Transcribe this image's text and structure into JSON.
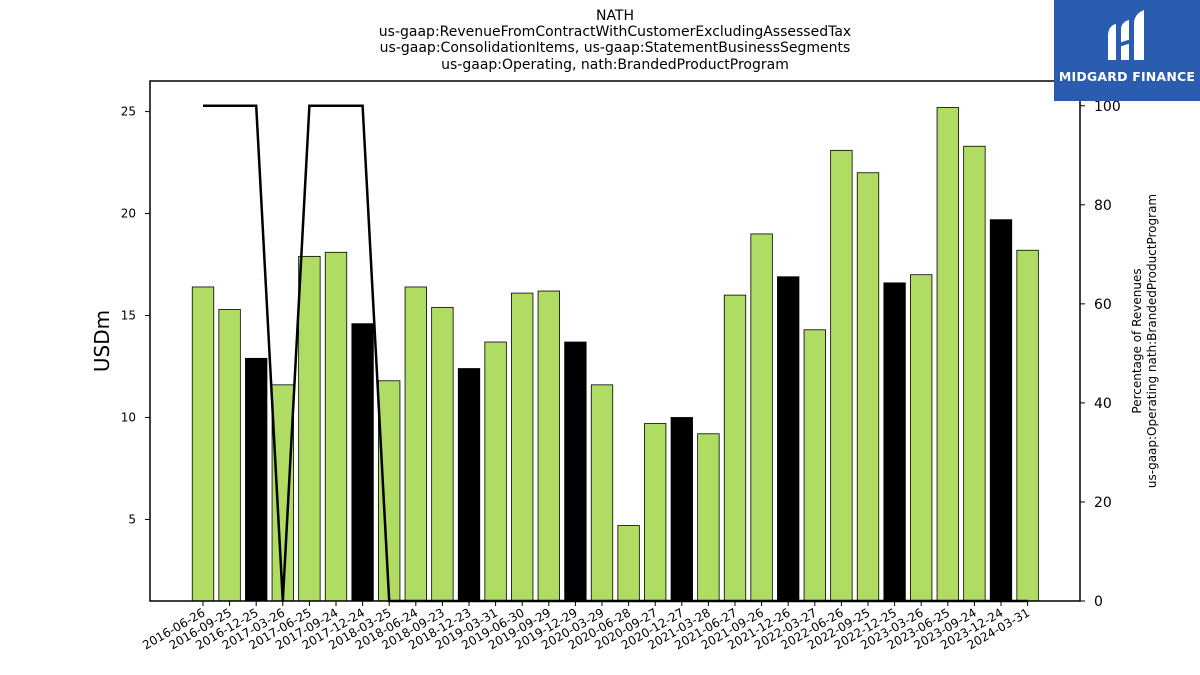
{
  "chart_data": {
    "type": "bar",
    "title_lines": [
      "NATH",
      "us-gaap:RevenueFromContractWithCustomerExcludingAssessedTax",
      "us-gaap:ConsolidationItems, us-gaap:StatementBusinessSegments",
      "us-gaap:Operating, nath:BrandedProductProgram"
    ],
    "ylabel": "USDm",
    "ylabel_right_lines": [
      "Percentage of Revenues",
      "us-gaap:Operating nath:BrandedProductProgram"
    ],
    "ylim": [
      1.0,
      26.5
    ],
    "yticks": [
      5,
      10,
      15,
      20,
      25
    ],
    "y2lim": [
      0,
      105
    ],
    "y2ticks": [
      0,
      20,
      40,
      60,
      80,
      100
    ],
    "categories": [
      "2016-06-26",
      "2016-09-25",
      "2016-12-25",
      "2017-03-26",
      "2017-06-25",
      "2017-09-24",
      "2017-12-24",
      "2018-03-25",
      "2018-06-24",
      "2018-09-23",
      "2018-12-23",
      "2019-03-31",
      "2019-06-30",
      "2019-09-29",
      "2019-12-29",
      "2020-03-29",
      "2020-06-28",
      "2020-09-27",
      "2020-12-27",
      "2021-03-28",
      "2021-06-27",
      "2021-09-26",
      "2021-12-26",
      "2022-03-27",
      "2022-06-26",
      "2022-09-25",
      "2022-12-25",
      "2023-03-26",
      "2023-06-25",
      "2023-09-24",
      "2023-12-24",
      "2024-03-31"
    ],
    "values": [
      16.4,
      15.3,
      12.9,
      11.6,
      17.9,
      18.1,
      14.6,
      11.8,
      16.4,
      15.4,
      12.4,
      13.7,
      16.1,
      16.2,
      13.7,
      11.6,
      4.7,
      9.7,
      10.0,
      9.2,
      16.0,
      19.0,
      16.9,
      14.3,
      23.1,
      22.0,
      16.6,
      17.0,
      25.2,
      23.3,
      19.7,
      18.2
    ],
    "bar_highlight": [
      false,
      false,
      true,
      false,
      false,
      false,
      true,
      false,
      false,
      false,
      true,
      false,
      false,
      false,
      true,
      false,
      false,
      false,
      true,
      false,
      false,
      false,
      true,
      false,
      false,
      false,
      true,
      false,
      false,
      false,
      true,
      false
    ],
    "line_series": {
      "axis": "right",
      "values": [
        100,
        100,
        100,
        0,
        100,
        100,
        100,
        0,
        0,
        0,
        0,
        0,
        0,
        0,
        0,
        0,
        0,
        0,
        0,
        0,
        0,
        0,
        0,
        0,
        0,
        0,
        0,
        0,
        0,
        0,
        0,
        0
      ]
    },
    "colors": {
      "bar": "#b0dc64",
      "bar_highlight": "#000000",
      "bar_edge": "#000000",
      "line": "#000000"
    },
    "grid": false,
    "legend": "none"
  },
  "logo": {
    "text": "MIDGARD FINANCE",
    "color": "#2a5db0"
  }
}
